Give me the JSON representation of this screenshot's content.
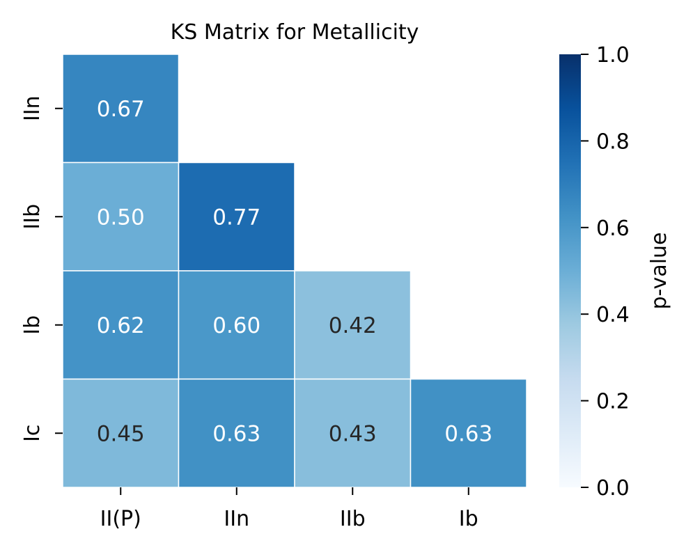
{
  "chart_data": {
    "type": "heatmap",
    "title": "KS Matrix for Metallicity",
    "x_categories": [
      "II(P)",
      "IIn",
      "IIb",
      "Ib"
    ],
    "y_categories": [
      "IIn",
      "IIb",
      "Ib",
      "Ic"
    ],
    "cells": [
      {
        "x": "II(P)",
        "y": "IIn",
        "value": 0.67,
        "label": "0.67"
      },
      {
        "x": "II(P)",
        "y": "IIb",
        "value": 0.5,
        "label": "0.50"
      },
      {
        "x": "IIn",
        "y": "IIb",
        "value": 0.77,
        "label": "0.77"
      },
      {
        "x": "II(P)",
        "y": "Ib",
        "value": 0.62,
        "label": "0.62"
      },
      {
        "x": "IIn",
        "y": "Ib",
        "value": 0.6,
        "label": "0.60"
      },
      {
        "x": "IIb",
        "y": "Ib",
        "value": 0.42,
        "label": "0.42"
      },
      {
        "x": "II(P)",
        "y": "Ic",
        "value": 0.45,
        "label": "0.45"
      },
      {
        "x": "IIn",
        "y": "Ic",
        "value": 0.63,
        "label": "0.63"
      },
      {
        "x": "IIb",
        "y": "Ic",
        "value": 0.43,
        "label": "0.43"
      },
      {
        "x": "Ib",
        "y": "Ic",
        "value": 0.63,
        "label": "0.63"
      }
    ],
    "colorbar": {
      "label": "p-value",
      "range": [
        0.0,
        1.0
      ],
      "ticks": [
        "0.0",
        "0.2",
        "0.4",
        "0.6",
        "0.8",
        "1.0"
      ],
      "colormap": "Blues",
      "colormap_stops": [
        "#f7fbff",
        "#deebf7",
        "#c6dbef",
        "#9ecae1",
        "#6baed6",
        "#4292c6",
        "#2171b5",
        "#08519c",
        "#08306b"
      ]
    },
    "cell_border_color": "#ffffff",
    "annotation_colors": {
      "dark_text": "#262626",
      "light_text": "#ffffff"
    }
  }
}
